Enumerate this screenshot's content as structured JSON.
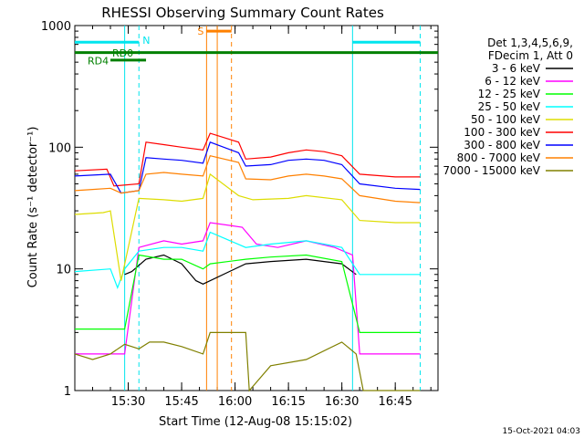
{
  "chart_data": {
    "type": "line",
    "title": "RHESSI Observing Summary Count Rates",
    "xlabel": "Start Time (12-Aug-08 15:15:02)",
    "ylabel": "Count Rate (s⁻¹ detector⁻¹)",
    "yscale": "log",
    "ylim": [
      1,
      1000
    ],
    "xlim": [
      "15:15",
      "16:57"
    ],
    "y_ticks": [
      "1",
      "10",
      "100",
      "1000"
    ],
    "x_ticks": [
      "15:30",
      "15:45",
      "16:00",
      "16:15",
      "16:30",
      "16:45"
    ],
    "legend_title": [
      "Det 1,3,4,5,6,9,",
      "FDecim 1, Att 0"
    ],
    "legend_position": "right",
    "timestamp": "15-Oct-2021 04:03",
    "flags": [
      {
        "label": "N",
        "color": "#00e5ee",
        "segments": [
          [
            "15:15",
            "15:33"
          ],
          [
            "16:33",
            "16:52"
          ]
        ],
        "level": 730
      },
      {
        "label": "RD0",
        "color": "#008000",
        "segments": [
          [
            "15:25",
            "15:35"
          ]
        ],
        "level": 520
      },
      {
        "label": "RD4",
        "color": "#008000",
        "segments": [
          [
            "15:15",
            "16:57"
          ]
        ],
        "level": 600
      },
      {
        "label": "S",
        "color": "#ff8000",
        "segments": [
          [
            "15:52",
            "15:59"
          ]
        ],
        "level": 900
      }
    ],
    "vlines": [
      {
        "time": "15:29",
        "color": "#00e5ee",
        "style": "solid"
      },
      {
        "time": "15:33",
        "color": "#00e5ee",
        "style": "dashed"
      },
      {
        "time": "15:52",
        "color": "#ff8000",
        "style": "solid"
      },
      {
        "time": "15:55",
        "color": "#ff8000",
        "style": "solid"
      },
      {
        "time": "15:59",
        "color": "#ff8000",
        "style": "dashed"
      },
      {
        "time": "16:33",
        "color": "#00e5ee",
        "style": "solid"
      },
      {
        "time": "16:52",
        "color": "#00e5ee",
        "style": "dashed"
      }
    ],
    "series": [
      {
        "name": "3 - 6 keV",
        "color": "#000000",
        "x": [
          "15:29",
          "15:31",
          "15:35",
          "15:40",
          "15:45",
          "15:49",
          "15:51",
          "16:03",
          "16:10",
          "16:20",
          "16:30",
          "16:34"
        ],
        "y": [
          9,
          9.5,
          12,
          13,
          11,
          8,
          7.5,
          11,
          11.5,
          12,
          11,
          9
        ]
      },
      {
        "name": "6 - 12 keV",
        "color": "#ff00ff",
        "x": [
          "15:15",
          "15:20",
          "15:25",
          "15:29",
          "15:33",
          "15:40",
          "15:45",
          "15:51",
          "15:53",
          "16:02",
          "16:06",
          "16:12",
          "16:20",
          "16:28",
          "16:33",
          "16:35",
          "16:40",
          "16:50",
          "16:52"
        ],
        "y": [
          2,
          2,
          2,
          2,
          15,
          17,
          16,
          17,
          24,
          22,
          16,
          15,
          17,
          15,
          13,
          2,
          2,
          2,
          2
        ]
      },
      {
        "name": "12 - 25 keV",
        "color": "#00ff00",
        "x": [
          "15:15",
          "15:29",
          "15:33",
          "15:40",
          "15:45",
          "15:51",
          "15:53",
          "16:03",
          "16:10",
          "16:20",
          "16:30",
          "16:35",
          "16:40",
          "16:52"
        ],
        "y": [
          3.2,
          3.2,
          13,
          12,
          12,
          10,
          11,
          12,
          12.5,
          13,
          11.5,
          3,
          3,
          3
        ]
      },
      {
        "name": "25 - 50 keV",
        "color": "#00ffff",
        "x": [
          "15:15",
          "15:25",
          "15:27",
          "15:29",
          "15:33",
          "15:40",
          "15:45",
          "15:51",
          "15:53",
          "16:03",
          "16:10",
          "16:20",
          "16:30",
          "16:35",
          "16:40",
          "16:52"
        ],
        "y": [
          9.5,
          10,
          7,
          10,
          14,
          15,
          15,
          14,
          20,
          15,
          16,
          17,
          15,
          9,
          9,
          9
        ]
      },
      {
        "name": "50 - 100 keV",
        "color": "#dddd00",
        "x": [
          "15:15",
          "15:23",
          "15:25",
          "15:28",
          "15:33",
          "15:40",
          "15:45",
          "15:51",
          "15:53",
          "16:01",
          "16:05",
          "16:15",
          "16:20",
          "16:30",
          "16:35",
          "16:45",
          "16:52"
        ],
        "y": [
          28,
          29,
          30,
          8,
          38,
          37,
          36,
          38,
          60,
          40,
          37,
          38,
          40,
          37,
          25,
          24,
          24
        ]
      },
      {
        "name": "100 - 300 keV",
        "color": "#ff0000",
        "x": [
          "15:15",
          "15:24",
          "15:26",
          "15:33",
          "15:35",
          "15:40",
          "15:45",
          "15:51",
          "15:53",
          "16:01",
          "16:03",
          "16:10",
          "16:15",
          "16:20",
          "16:25",
          "16:30",
          "16:35",
          "16:45",
          "16:52"
        ],
        "y": [
          64,
          66,
          48,
          50,
          110,
          105,
          100,
          95,
          130,
          110,
          80,
          83,
          90,
          95,
          92,
          85,
          60,
          57,
          57
        ]
      },
      {
        "name": "300 - 800 keV",
        "color": "#0000ff",
        "x": [
          "15:15",
          "15:25",
          "15:28",
          "15:33",
          "15:35",
          "15:40",
          "15:45",
          "15:51",
          "15:53",
          "16:01",
          "16:03",
          "16:10",
          "16:15",
          "16:20",
          "16:25",
          "16:30",
          "16:35",
          "16:45",
          "16:52"
        ],
        "y": [
          58,
          60,
          42,
          44,
          82,
          80,
          78,
          74,
          110,
          90,
          70,
          72,
          78,
          80,
          78,
          72,
          50,
          46,
          45
        ]
      },
      {
        "name": "800 - 7000 keV",
        "color": "#ff8000",
        "x": [
          "15:15",
          "15:20",
          "15:25",
          "15:28",
          "15:33",
          "15:35",
          "15:40",
          "15:45",
          "15:51",
          "15:53",
          "16:01",
          "16:03",
          "16:10",
          "16:15",
          "16:20",
          "16:25",
          "16:30",
          "16:35",
          "16:45",
          "16:52"
        ],
        "y": [
          44,
          45,
          46,
          42,
          44,
          60,
          62,
          60,
          58,
          85,
          75,
          55,
          54,
          58,
          60,
          58,
          55,
          40,
          36,
          35
        ]
      },
      {
        "name": "7000 - 15000 keV",
        "color": "#808000",
        "x": [
          "15:15",
          "15:20",
          "15:25",
          "15:29",
          "15:33",
          "15:36",
          "15:40",
          "15:45",
          "15:51",
          "15:53",
          "16:03",
          "16:04",
          "16:10",
          "16:20",
          "16:30",
          "16:34",
          "16:36",
          "16:52"
        ],
        "y": [
          2,
          1.8,
          2,
          2.4,
          2.2,
          2.5,
          2.5,
          2.3,
          2,
          3,
          3,
          1,
          1.6,
          1.8,
          2.5,
          2,
          1,
          1
        ]
      }
    ]
  }
}
